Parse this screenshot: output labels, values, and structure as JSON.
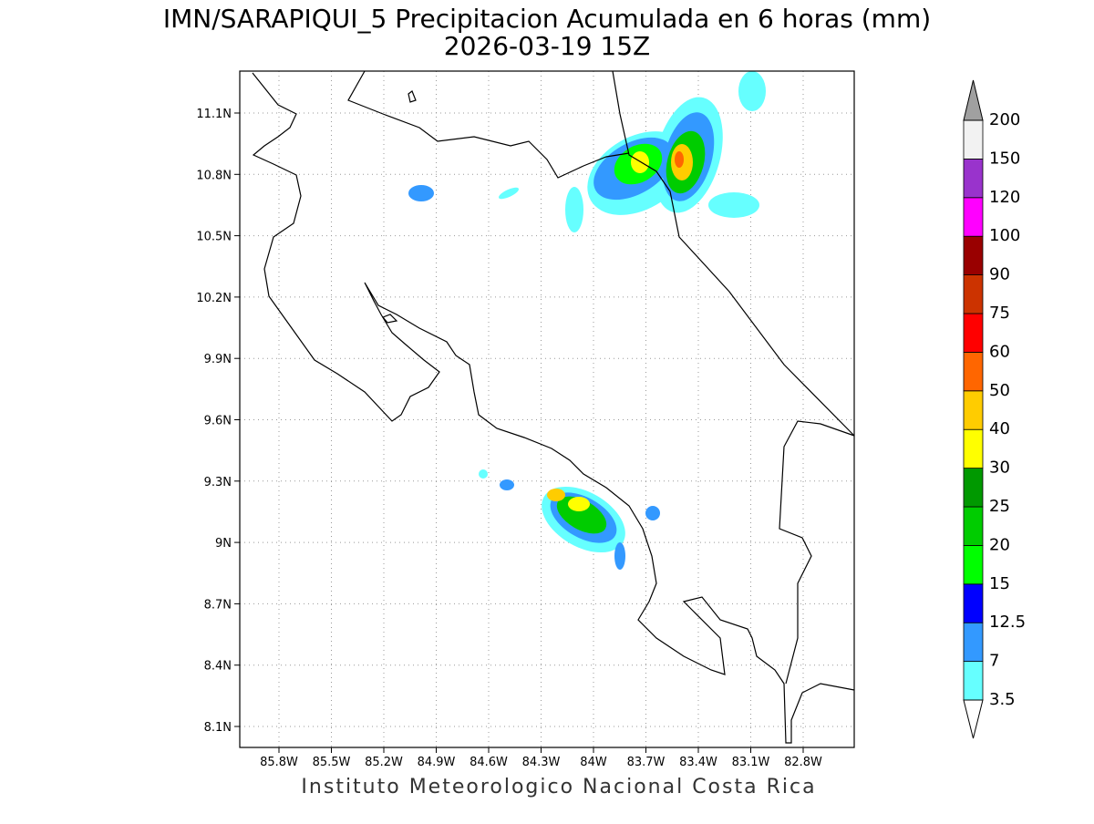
{
  "title": "IMN/SARAPIQUI_5 Precipitacion Acumulada en 6 horas (mm)",
  "subtitle": "2026-03-19 15Z",
  "x_axis": {
    "labels": [
      "85.8W",
      "85.5W",
      "85.2W",
      "84.9W",
      "84.6W",
      "84.3W",
      "84W",
      "83.7W",
      "83.4W",
      "83.1W",
      "82.8W"
    ]
  },
  "y_axis": {
    "labels": [
      "11.1N",
      "10.8N",
      "10.5N",
      "10.2N",
      "9.9N",
      "9.6N",
      "9.3N",
      "9N",
      "8.7N",
      "8.4N",
      "8.1N"
    ]
  },
  "colorbar": {
    "levels": [
      3.5,
      7,
      12.5,
      15,
      20,
      25,
      30,
      40,
      50,
      60,
      75,
      90,
      100,
      120,
      150,
      200
    ],
    "colors": [
      "#66ffff",
      "#3399ff",
      "#0000ff",
      "#00ff00",
      "#00cc00",
      "#009900",
      "#ffff00",
      "#ffcc00",
      "#ff6600",
      "#ff0000",
      "#cc3300",
      "#990000",
      "#ff00ff",
      "#9933cc",
      "#f2f2f2"
    ],
    "under_color": "#ffffff",
    "over_color": "#a0a0a0"
  },
  "footer": "Instituto Meteorologico Nacional Costa Rica"
}
